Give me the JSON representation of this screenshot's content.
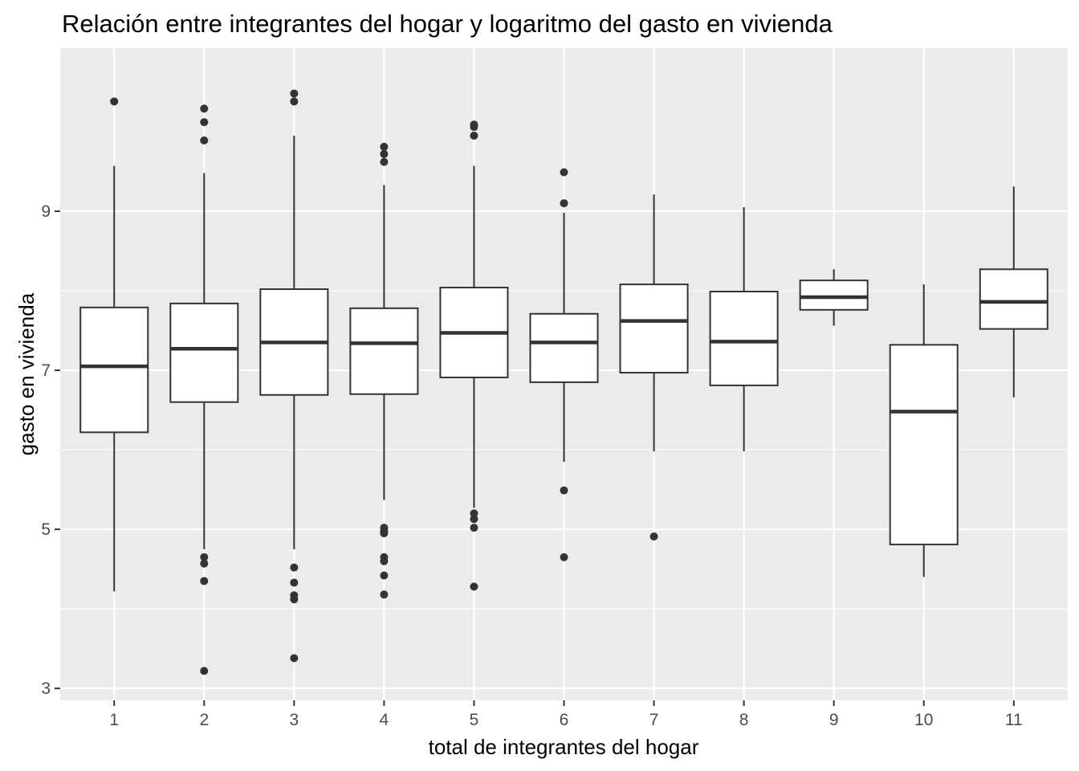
{
  "chart_data": {
    "type": "boxplot",
    "title": "Relación entre integrantes del hogar y logaritmo del gasto en vivienda",
    "xlabel": "total de integrantes del hogar",
    "ylabel": "gasto en vivienda",
    "x_ticks": [
      "1",
      "2",
      "3",
      "4",
      "5",
      "6",
      "7",
      "8",
      "9",
      "10",
      "11"
    ],
    "y_ticks": [
      3,
      5,
      7,
      9
    ],
    "y_tick_labels": [
      "3",
      "5",
      "7",
      "9"
    ],
    "ylim": [
      2.85,
      11.05
    ],
    "grid": true,
    "panel_color": "#ebebeb",
    "grid_color": "#ffffff",
    "box_fill": "#ffffff",
    "line_color": "#333333",
    "boxes": [
      {
        "category": "1",
        "whisker_low": 4.22,
        "q1": 6.22,
        "median": 7.05,
        "q3": 7.79,
        "whisker_high": 9.57,
        "outliers": [
          10.38
        ]
      },
      {
        "category": "2",
        "whisker_low": 4.75,
        "q1": 6.6,
        "median": 7.27,
        "q3": 7.84,
        "whisker_high": 9.48,
        "outliers": [
          10.29,
          10.12,
          9.89,
          4.65,
          4.57,
          4.35,
          3.22
        ]
      },
      {
        "category": "3",
        "whisker_low": 4.75,
        "q1": 6.69,
        "median": 7.35,
        "q3": 8.02,
        "whisker_high": 9.95,
        "outliers": [
          10.48,
          10.38,
          4.52,
          4.33,
          4.17,
          4.12,
          3.38
        ]
      },
      {
        "category": "4",
        "whisker_low": 5.37,
        "q1": 6.7,
        "median": 7.34,
        "q3": 7.78,
        "whisker_high": 9.33,
        "outliers": [
          9.81,
          9.72,
          9.62,
          5.02,
          4.98,
          4.95,
          4.65,
          4.6,
          4.42,
          4.18
        ]
      },
      {
        "category": "5",
        "whisker_low": 5.27,
        "q1": 6.91,
        "median": 7.47,
        "q3": 8.04,
        "whisker_high": 9.57,
        "outliers": [
          10.09,
          10.06,
          9.95,
          5.2,
          5.13,
          5.02,
          4.28
        ]
      },
      {
        "category": "6",
        "whisker_low": 5.85,
        "q1": 6.85,
        "median": 7.35,
        "q3": 7.71,
        "whisker_high": 8.98,
        "outliers": [
          9.49,
          9.1,
          5.49,
          4.65
        ]
      },
      {
        "category": "7",
        "whisker_low": 5.98,
        "q1": 6.97,
        "median": 7.62,
        "q3": 8.08,
        "whisker_high": 9.21,
        "outliers": [
          4.91
        ]
      },
      {
        "category": "8",
        "whisker_low": 5.98,
        "q1": 6.81,
        "median": 7.36,
        "q3": 7.99,
        "whisker_high": 9.05,
        "outliers": []
      },
      {
        "category": "9",
        "whisker_low": 7.56,
        "q1": 7.76,
        "median": 7.92,
        "q3": 8.13,
        "whisker_high": 8.27,
        "outliers": []
      },
      {
        "category": "10",
        "whisker_low": 4.4,
        "q1": 4.81,
        "median": 6.48,
        "q3": 7.32,
        "whisker_high": 8.08,
        "outliers": []
      },
      {
        "category": "11",
        "whisker_low": 6.66,
        "q1": 7.52,
        "median": 7.86,
        "q3": 8.27,
        "whisker_high": 9.31,
        "outliers": []
      }
    ]
  }
}
